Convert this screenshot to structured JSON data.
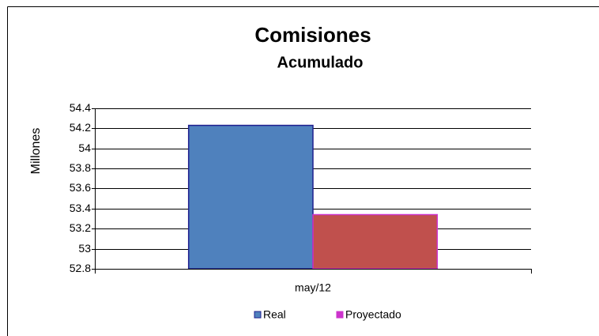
{
  "chart_data": {
    "type": "bar",
    "title": "Comisiones",
    "subtitle": "Acumulado",
    "y_label": "Millones",
    "categories": [
      "may/12"
    ],
    "series": [
      {
        "name": "Real",
        "color": "#4f81bd",
        "stroke": "#1f1f8f",
        "values": [
          54.23
        ]
      },
      {
        "name": "Proyectado",
        "color": "#c0504d",
        "stroke": "#cc33cc",
        "values": [
          53.34
        ]
      }
    ],
    "ylim": [
      52.8,
      54.4
    ],
    "yticks": [
      52.8,
      53,
      53.2,
      53.4,
      53.6,
      53.8,
      54,
      54.2,
      54.4
    ],
    "grid": true,
    "legend": "bottom"
  }
}
